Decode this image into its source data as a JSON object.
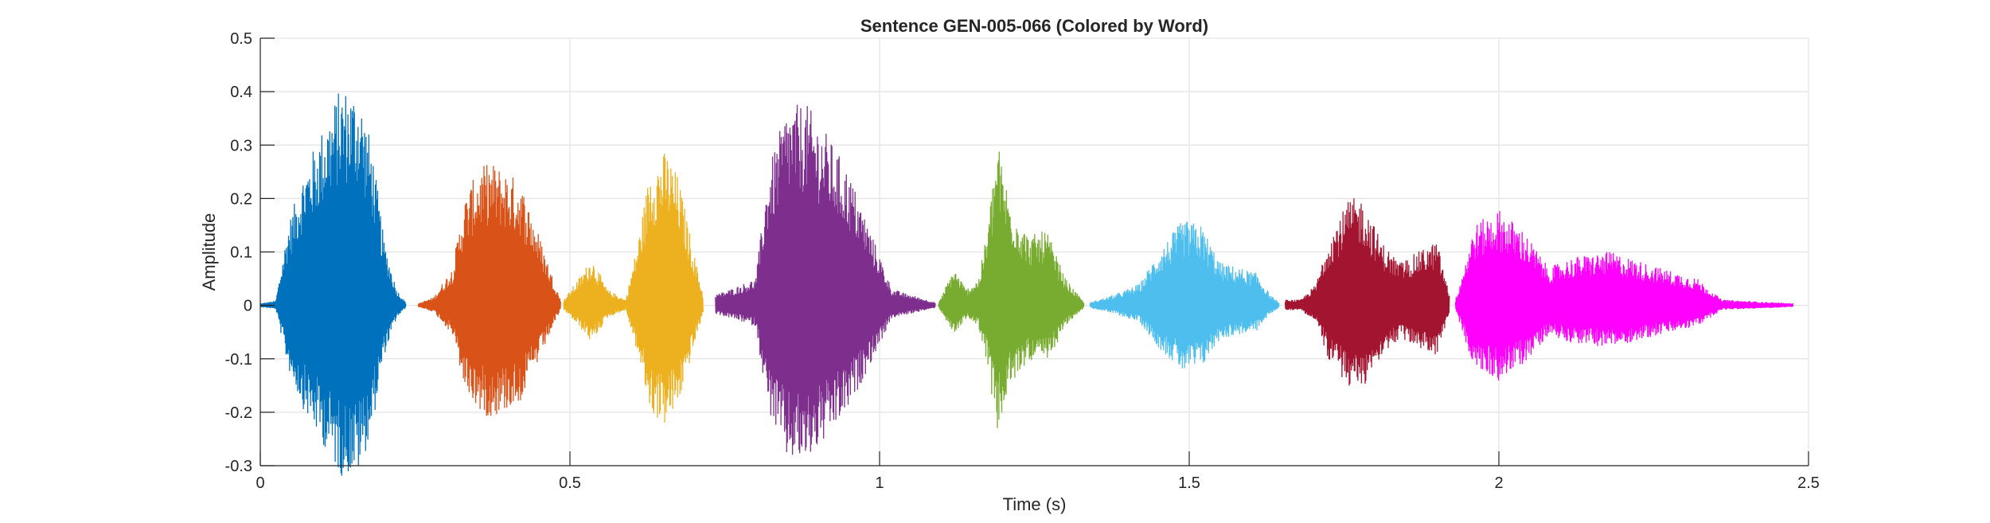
{
  "chart_data": {
    "type": "line",
    "title": "Sentence GEN-005-066 (Colored by Word)",
    "xlabel": "Time (s)",
    "ylabel": "Amplitude",
    "xlim": [
      0,
      2.5
    ],
    "ylim": [
      -0.3,
      0.5
    ],
    "xticks": [
      0,
      0.5,
      1,
      1.5,
      2,
      2.5
    ],
    "xtick_labels": [
      "0",
      "0.5",
      "1",
      "1.5",
      "2",
      "2.5"
    ],
    "yticks": [
      -0.3,
      -0.2,
      -0.1,
      0,
      0.1,
      0.2,
      0.3,
      0.4,
      0.5
    ],
    "ytick_labels": [
      "-0.3",
      "-0.2",
      "-0.1",
      "0",
      "0.1",
      "0.2",
      "0.3",
      "0.4",
      "0.5"
    ],
    "grid": true,
    "series": [
      {
        "color": "#0072BD",
        "t_start": 0.0,
        "t_end": 0.235,
        "envelope": [
          [
            0.0,
            0.003
          ],
          [
            0.025,
            0.008
          ],
          [
            0.045,
            0.15
          ],
          [
            0.07,
            0.25
          ],
          [
            0.1,
            0.33
          ],
          [
            0.13,
            0.41
          ],
          [
            0.16,
            0.4
          ],
          [
            0.18,
            0.3
          ],
          [
            0.2,
            0.12
          ],
          [
            0.22,
            0.03
          ],
          [
            0.235,
            0.005
          ]
        ]
      },
      {
        "color": "#D95319",
        "t_start": 0.255,
        "t_end": 0.485,
        "envelope": [
          [
            0.255,
            0.003
          ],
          [
            0.28,
            0.015
          ],
          [
            0.31,
            0.07
          ],
          [
            0.33,
            0.2
          ],
          [
            0.35,
            0.25
          ],
          [
            0.37,
            0.27
          ],
          [
            0.4,
            0.25
          ],
          [
            0.42,
            0.23
          ],
          [
            0.445,
            0.15
          ],
          [
            0.47,
            0.06
          ],
          [
            0.485,
            0.01
          ]
        ]
      },
      {
        "color": "#EDB120",
        "t_start": 0.49,
        "t_end": 0.715,
        "envelope": [
          [
            0.49,
            0.01
          ],
          [
            0.52,
            0.06
          ],
          [
            0.535,
            0.09
          ],
          [
            0.56,
            0.03
          ],
          [
            0.59,
            0.01
          ],
          [
            0.61,
            0.12
          ],
          [
            0.63,
            0.26
          ],
          [
            0.655,
            0.29
          ],
          [
            0.675,
            0.24
          ],
          [
            0.7,
            0.1
          ],
          [
            0.715,
            0.02
          ]
        ]
      },
      {
        "color": "#7E2F8E",
        "t_start": 0.735,
        "t_end": 1.09,
        "envelope": [
          [
            0.735,
            0.02
          ],
          [
            0.76,
            0.03
          ],
          [
            0.8,
            0.05
          ],
          [
            0.82,
            0.25
          ],
          [
            0.85,
            0.37
          ],
          [
            0.88,
            0.38
          ],
          [
            0.91,
            0.33
          ],
          [
            0.95,
            0.25
          ],
          [
            0.985,
            0.14
          ],
          [
            1.02,
            0.03
          ],
          [
            1.09,
            0.005
          ]
        ]
      },
      {
        "color": "#77AC30",
        "t_start": 1.095,
        "t_end": 1.33,
        "envelope": [
          [
            1.095,
            0.003
          ],
          [
            1.12,
            0.07
          ],
          [
            1.14,
            0.03
          ],
          [
            1.16,
            0.05
          ],
          [
            1.175,
            0.15
          ],
          [
            1.19,
            0.31
          ],
          [
            1.21,
            0.2
          ],
          [
            1.24,
            0.13
          ],
          [
            1.27,
            0.14
          ],
          [
            1.3,
            0.05
          ],
          [
            1.33,
            0.005
          ]
        ]
      },
      {
        "color": "#4DBEEE",
        "t_start": 1.34,
        "t_end": 1.645,
        "envelope": [
          [
            1.34,
            0.005
          ],
          [
            1.38,
            0.02
          ],
          [
            1.42,
            0.04
          ],
          [
            1.45,
            0.1
          ],
          [
            1.49,
            0.16
          ],
          [
            1.52,
            0.15
          ],
          [
            1.55,
            0.08
          ],
          [
            1.58,
            0.07
          ],
          [
            1.61,
            0.06
          ],
          [
            1.63,
            0.02
          ],
          [
            1.645,
            0.005
          ]
        ]
      },
      {
        "color": "#A2142F",
        "t_start": 1.655,
        "t_end": 1.92,
        "envelope": [
          [
            1.655,
            0.01
          ],
          [
            1.68,
            0.01
          ],
          [
            1.705,
            0.04
          ],
          [
            1.725,
            0.13
          ],
          [
            1.76,
            0.2
          ],
          [
            1.78,
            0.2
          ],
          [
            1.81,
            0.12
          ],
          [
            1.84,
            0.08
          ],
          [
            1.87,
            0.1
          ],
          [
            1.9,
            0.12
          ],
          [
            1.92,
            0.02
          ]
        ]
      },
      {
        "color": "#FF00FF",
        "t_start": 1.93,
        "t_end": 2.475,
        "envelope": [
          [
            1.93,
            0.01
          ],
          [
            1.96,
            0.15
          ],
          [
            2.0,
            0.18
          ],
          [
            2.04,
            0.14
          ],
          [
            2.08,
            0.07
          ],
          [
            2.12,
            0.09
          ],
          [
            2.18,
            0.1
          ],
          [
            2.26,
            0.07
          ],
          [
            2.32,
            0.05
          ],
          [
            2.36,
            0.01
          ],
          [
            2.475,
            0.003
          ]
        ]
      }
    ]
  }
}
